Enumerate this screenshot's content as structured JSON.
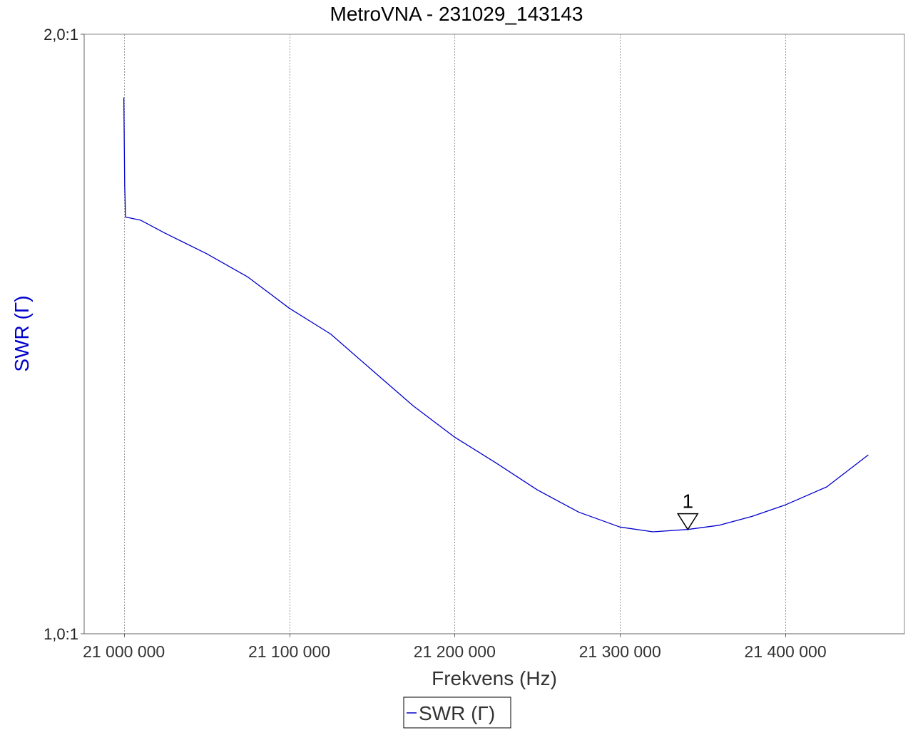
{
  "chart_data": {
    "type": "line",
    "title": "MetroVNA - 231029_143143",
    "xlabel": "Frekvens (Hz)",
    "ylabel": "SWR  (Γ)",
    "xlim": [
      20976000,
      21472000
    ],
    "ylim": [
      1.0,
      2.0
    ],
    "yticks": [
      {
        "value": 1.0,
        "label": "1,0:1"
      },
      {
        "value": 2.0,
        "label": "2,0:1"
      }
    ],
    "xticks": [
      {
        "value": 21000000,
        "label": "21 000 000"
      },
      {
        "value": 21100000,
        "label": "21 100 000"
      },
      {
        "value": 21200000,
        "label": "21 200 000"
      },
      {
        "value": 21300000,
        "label": "21 300 000"
      },
      {
        "value": 21400000,
        "label": "21 400 000"
      }
    ],
    "grid": "vertical dotted",
    "series": [
      {
        "name": "SWR  (Γ)",
        "color": "#0000cc",
        "x": [
          21000000,
          21000500,
          21001000,
          21010000,
          21025000,
          21050000,
          21075000,
          21100000,
          21125000,
          21150000,
          21175000,
          21200000,
          21225000,
          21250000,
          21275000,
          21300000,
          21320000,
          21341000,
          21360000,
          21380000,
          21400000,
          21425000,
          21450000
        ],
        "values": [
          1.894,
          1.75,
          1.695,
          1.69,
          1.668,
          1.634,
          1.595,
          1.543,
          1.5,
          1.44,
          1.38,
          1.328,
          1.285,
          1.24,
          1.203,
          1.178,
          1.17,
          1.174,
          1.181,
          1.196,
          1.215,
          1.245,
          1.298
        ]
      }
    ],
    "markers": [
      {
        "label": "1",
        "x": 21341000,
        "y": 1.174
      }
    ],
    "legend": {
      "position": "bottom-center",
      "entries": [
        "SWR  (Γ)"
      ]
    }
  },
  "colors": {
    "series": "#0000cc",
    "axis": "#666666",
    "grid": "#999999",
    "ylabel": "#0000cc",
    "background": "#ffffff"
  }
}
